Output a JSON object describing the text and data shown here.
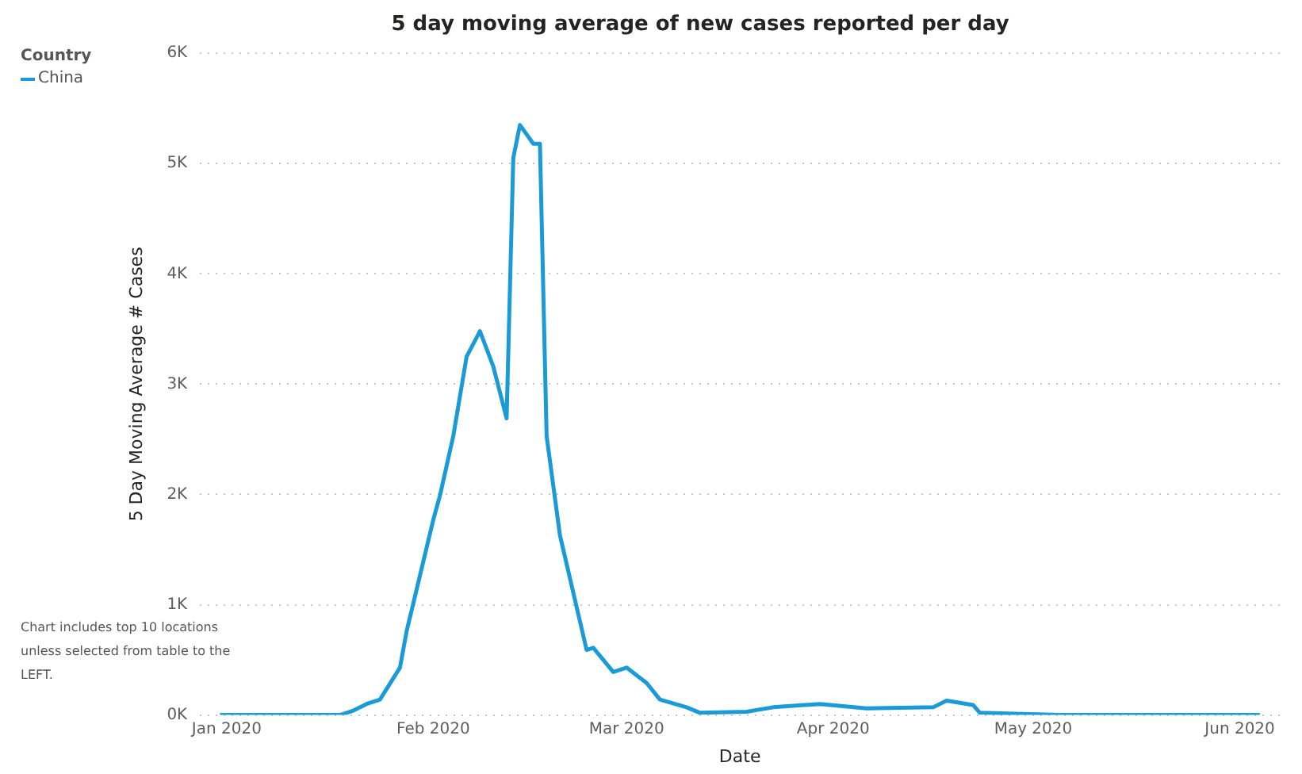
{
  "chart_data": {
    "type": "line",
    "title": "5 day moving average of new cases reported per day",
    "xlabel": "Date",
    "ylabel": "5 Day Moving Average # Cases",
    "legend_title": "Country",
    "legend": "top left",
    "grid": "y",
    "marker": "none",
    "line_style": "solid",
    "annotations": [
      "Chart includes top 10 locations unless selected from table to the LEFT."
    ],
    "x": [
      "2019-12-31",
      "2020-01-10",
      "2020-01-18",
      "2020-01-20",
      "2020-01-22",
      "2020-01-24",
      "2020-01-27",
      "2020-01-28",
      "2020-02-01",
      "2020-02-02",
      "2020-02-04",
      "2020-02-06",
      "2020-02-08",
      "2020-02-10",
      "2020-02-12",
      "2020-02-13",
      "2020-02-14",
      "2020-02-16",
      "2020-02-17",
      "2020-02-18",
      "2020-02-20",
      "2020-02-24",
      "2020-02-25",
      "2020-02-28",
      "2020-03-01",
      "2020-03-04",
      "2020-03-06",
      "2020-03-10",
      "2020-03-12",
      "2020-03-19",
      "2020-03-23",
      "2020-03-30",
      "2020-04-06",
      "2020-04-16",
      "2020-04-18",
      "2020-04-22",
      "2020-04-23",
      "2020-05-05",
      "2020-06-04"
    ],
    "series": [
      {
        "name": "China",
        "color": "#1a9bd7",
        "values": [
          0,
          0,
          0,
          40,
          100,
          140,
          430,
          760,
          1770,
          1990,
          2530,
          3250,
          3480,
          3160,
          2690,
          5050,
          5350,
          5180,
          5180,
          2530,
          1630,
          590,
          610,
          390,
          430,
          290,
          140,
          70,
          20,
          30,
          70,
          100,
          60,
          70,
          130,
          90,
          20,
          0,
          0
        ]
      }
    ],
    "xlim": [
      "2019-12-28",
      "2020-06-07"
    ],
    "xticks": [
      {
        "value": "2020-01-01",
        "label": "Jan 2020"
      },
      {
        "value": "2020-02-01",
        "label": "Feb 2020"
      },
      {
        "value": "2020-03-01",
        "label": "Mar 2020"
      },
      {
        "value": "2020-04-01",
        "label": "Apr 2020"
      },
      {
        "value": "2020-05-01",
        "label": "May 2020"
      },
      {
        "value": "2020-06-01",
        "label": "Jun 2020"
      }
    ],
    "ylim": [
      0,
      6000
    ],
    "yticks": [
      {
        "value": 0,
        "label": "0K"
      },
      {
        "value": 1000,
        "label": "1K"
      },
      {
        "value": 2000,
        "label": "2K"
      },
      {
        "value": 3000,
        "label": "3K"
      },
      {
        "value": 4000,
        "label": "4K"
      },
      {
        "value": 5000,
        "label": "5K"
      },
      {
        "value": 6000,
        "label": "6K"
      }
    ]
  }
}
